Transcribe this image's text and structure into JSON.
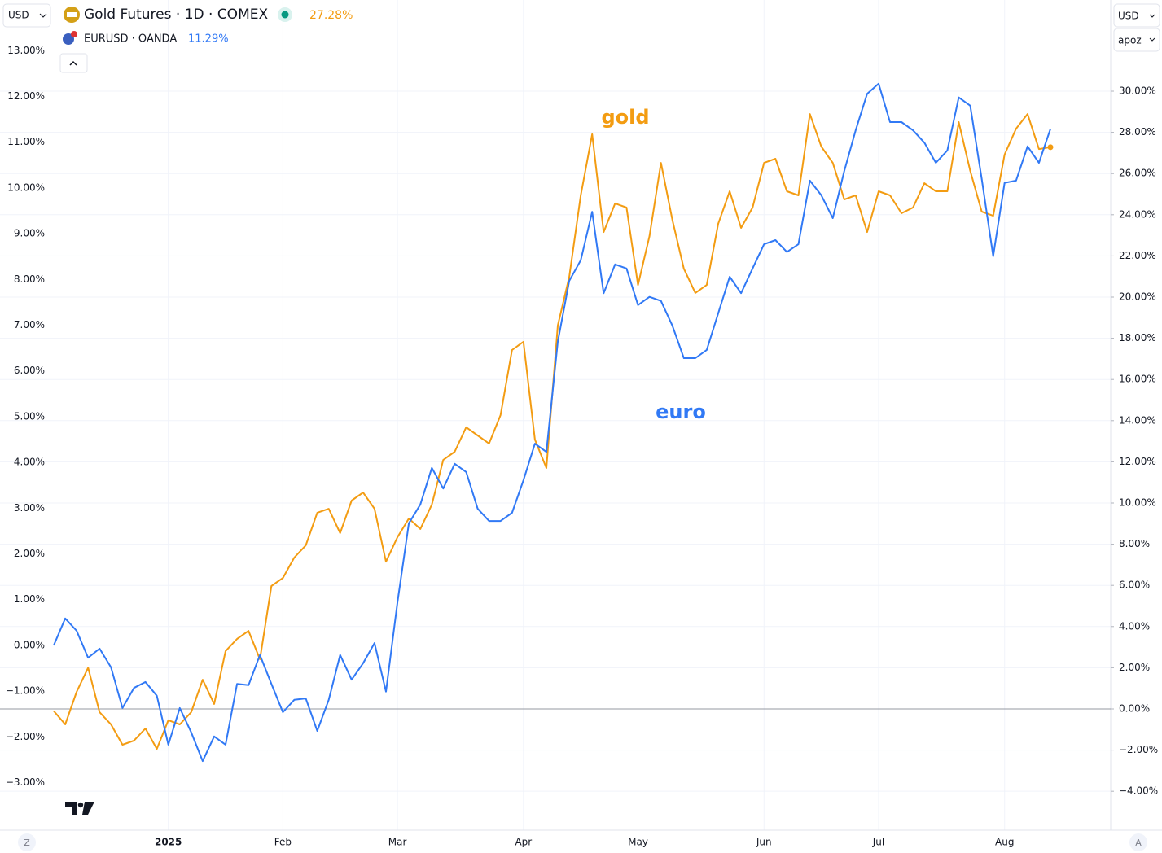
{
  "chart_data": {
    "type": "line",
    "currency_left": "USD",
    "currency_right": "USD",
    "scale_mode": "apoz",
    "corner_left": "Z",
    "corner_right": "A",
    "annotations": [
      {
        "text": "gold",
        "series": 0
      },
      {
        "text": "euro",
        "series": 1
      }
    ],
    "categories": [
      null,
      null,
      null,
      null,
      null,
      null,
      null,
      null,
      null,
      null,
      "2025",
      null,
      null,
      null,
      null,
      null,
      null,
      null,
      null,
      null,
      "Feb",
      null,
      null,
      null,
      null,
      null,
      null,
      null,
      null,
      null,
      "Mar",
      null,
      null,
      null,
      null,
      null,
      null,
      null,
      null,
      null,
      null,
      "Apr",
      null,
      null,
      null,
      null,
      null,
      null,
      null,
      null,
      null,
      "May",
      null,
      null,
      null,
      null,
      null,
      null,
      null,
      null,
      null,
      null,
      "Jun",
      null,
      null,
      null,
      null,
      null,
      null,
      null,
      null,
      null,
      "Jul",
      null,
      null,
      null,
      null,
      null,
      null,
      null,
      null,
      null,
      null,
      "Aug",
      null,
      null,
      null,
      null
    ],
    "series": [
      {
        "name": "Gold Futures · 1D · COMEX",
        "color": "#f39c12",
        "axis": "y2",
        "last_label": "27.28%",
        "values": [
          -0.1,
          -0.75,
          0.83,
          2.0,
          -0.16,
          -0.75,
          -1.74,
          -1.54,
          -0.95,
          -1.94,
          -0.55,
          -0.75,
          -0.16,
          1.42,
          0.24,
          2.81,
          3.4,
          3.79,
          2.41,
          5.97,
          6.36,
          7.35,
          7.94,
          9.53,
          9.72,
          8.54,
          10.12,
          10.51,
          9.72,
          7.15,
          8.34,
          9.25,
          8.74,
          9.92,
          12.09,
          12.49,
          13.68,
          13.28,
          12.89,
          14.27,
          17.43,
          17.83,
          13.08,
          11.7,
          18.62,
          20.99,
          24.94,
          27.91,
          23.16,
          24.55,
          24.35,
          20.59,
          22.96,
          26.52,
          23.75,
          21.38,
          20.2,
          20.59,
          23.56,
          25.14,
          23.36,
          24.35,
          26.52,
          26.72,
          25.14,
          24.94,
          28.89,
          27.31,
          26.52,
          24.74,
          24.94,
          23.16,
          25.14,
          24.94,
          24.07,
          24.35,
          25.53,
          25.14,
          25.14,
          28.5,
          26.13,
          24.15,
          23.95,
          26.92,
          28.18,
          28.89,
          27.19,
          27.28
        ]
      },
      {
        "name": "EURUSD · OANDA",
        "color": "#3179f5",
        "axis": "y",
        "last_label": "11.29%",
        "values": [
          0.0,
          0.59,
          0.32,
          -0.27,
          -0.07,
          -0.48,
          -1.37,
          -0.93,
          -0.8,
          -1.1,
          -2.17,
          -1.37,
          -1.9,
          -2.53,
          -1.99,
          -2.17,
          -0.84,
          -0.87,
          -0.21,
          -0.84,
          -1.46,
          -1.19,
          -1.16,
          -1.87,
          -1.19,
          -0.21,
          -0.75,
          -0.39,
          0.05,
          -1.01,
          0.94,
          2.67,
          3.08,
          3.88,
          3.43,
          3.97,
          3.79,
          2.99,
          2.72,
          2.72,
          2.9,
          3.61,
          4.41,
          4.23,
          6.64,
          7.97,
          8.42,
          9.48,
          7.7,
          8.33,
          8.24,
          7.44,
          7.62,
          7.53,
          6.99,
          6.28,
          6.28,
          6.46,
          7.26,
          8.06,
          7.7,
          8.24,
          8.77,
          8.86,
          8.6,
          8.77,
          10.16,
          9.84,
          9.34,
          10.37,
          11.26,
          12.06,
          12.28,
          11.44,
          11.44,
          11.26,
          10.99,
          10.55,
          10.82,
          11.98,
          11.8,
          10.2,
          8.51,
          10.11,
          10.16,
          10.91,
          10.55,
          11.29
        ]
      }
    ],
    "ylim": [
      -4.04,
      14.02
    ],
    "yticks": [
      {
        "value": 13,
        "label": "13.00%"
      },
      {
        "value": 12,
        "label": "12.00%"
      },
      {
        "value": 11,
        "label": "11.00%"
      },
      {
        "value": 10,
        "label": "10.00%"
      },
      {
        "value": 9,
        "label": "9.00%"
      },
      {
        "value": 8,
        "label": "8.00%"
      },
      {
        "value": 7,
        "label": "7.00%"
      },
      {
        "value": 6,
        "label": "6.00%"
      },
      {
        "value": 5,
        "label": "5.00%"
      },
      {
        "value": 4,
        "label": "4.00%"
      },
      {
        "value": 3,
        "label": "3.00%"
      },
      {
        "value": 2,
        "label": "2.00%"
      },
      {
        "value": 1,
        "label": "1.00%"
      },
      {
        "value": 0,
        "label": "0.00%"
      },
      {
        "value": -1,
        "label": "−1.00%"
      },
      {
        "value": -2,
        "label": "−2.00%"
      },
      {
        "value": -3,
        "label": "−3.00%"
      }
    ],
    "y2lim": [
      -5.89,
      34.23
    ],
    "y2ticks": [
      {
        "value": 30,
        "label": "30.00%"
      },
      {
        "value": 28,
        "label": "28.00%"
      },
      {
        "value": 26,
        "label": "26.00%"
      },
      {
        "value": 24,
        "label": "24.00%"
      },
      {
        "value": 22,
        "label": "22.00%"
      },
      {
        "value": 20,
        "label": "20.00%"
      },
      {
        "value": 18,
        "label": "18.00%"
      },
      {
        "value": 16,
        "label": "16.00%"
      },
      {
        "value": 14,
        "label": "14.00%"
      },
      {
        "value": 12,
        "label": "12.00%"
      },
      {
        "value": 10,
        "label": "10.00%"
      },
      {
        "value": 8,
        "label": "8.00%"
      },
      {
        "value": 6,
        "label": "6.00%"
      },
      {
        "value": 4,
        "label": "4.00%"
      },
      {
        "value": 2,
        "label": "2.00%"
      },
      {
        "value": 0,
        "label": "0.00%"
      },
      {
        "value": -2,
        "label": "−2.00%"
      },
      {
        "value": -4,
        "label": "−4.00%"
      }
    ],
    "grid": true
  }
}
